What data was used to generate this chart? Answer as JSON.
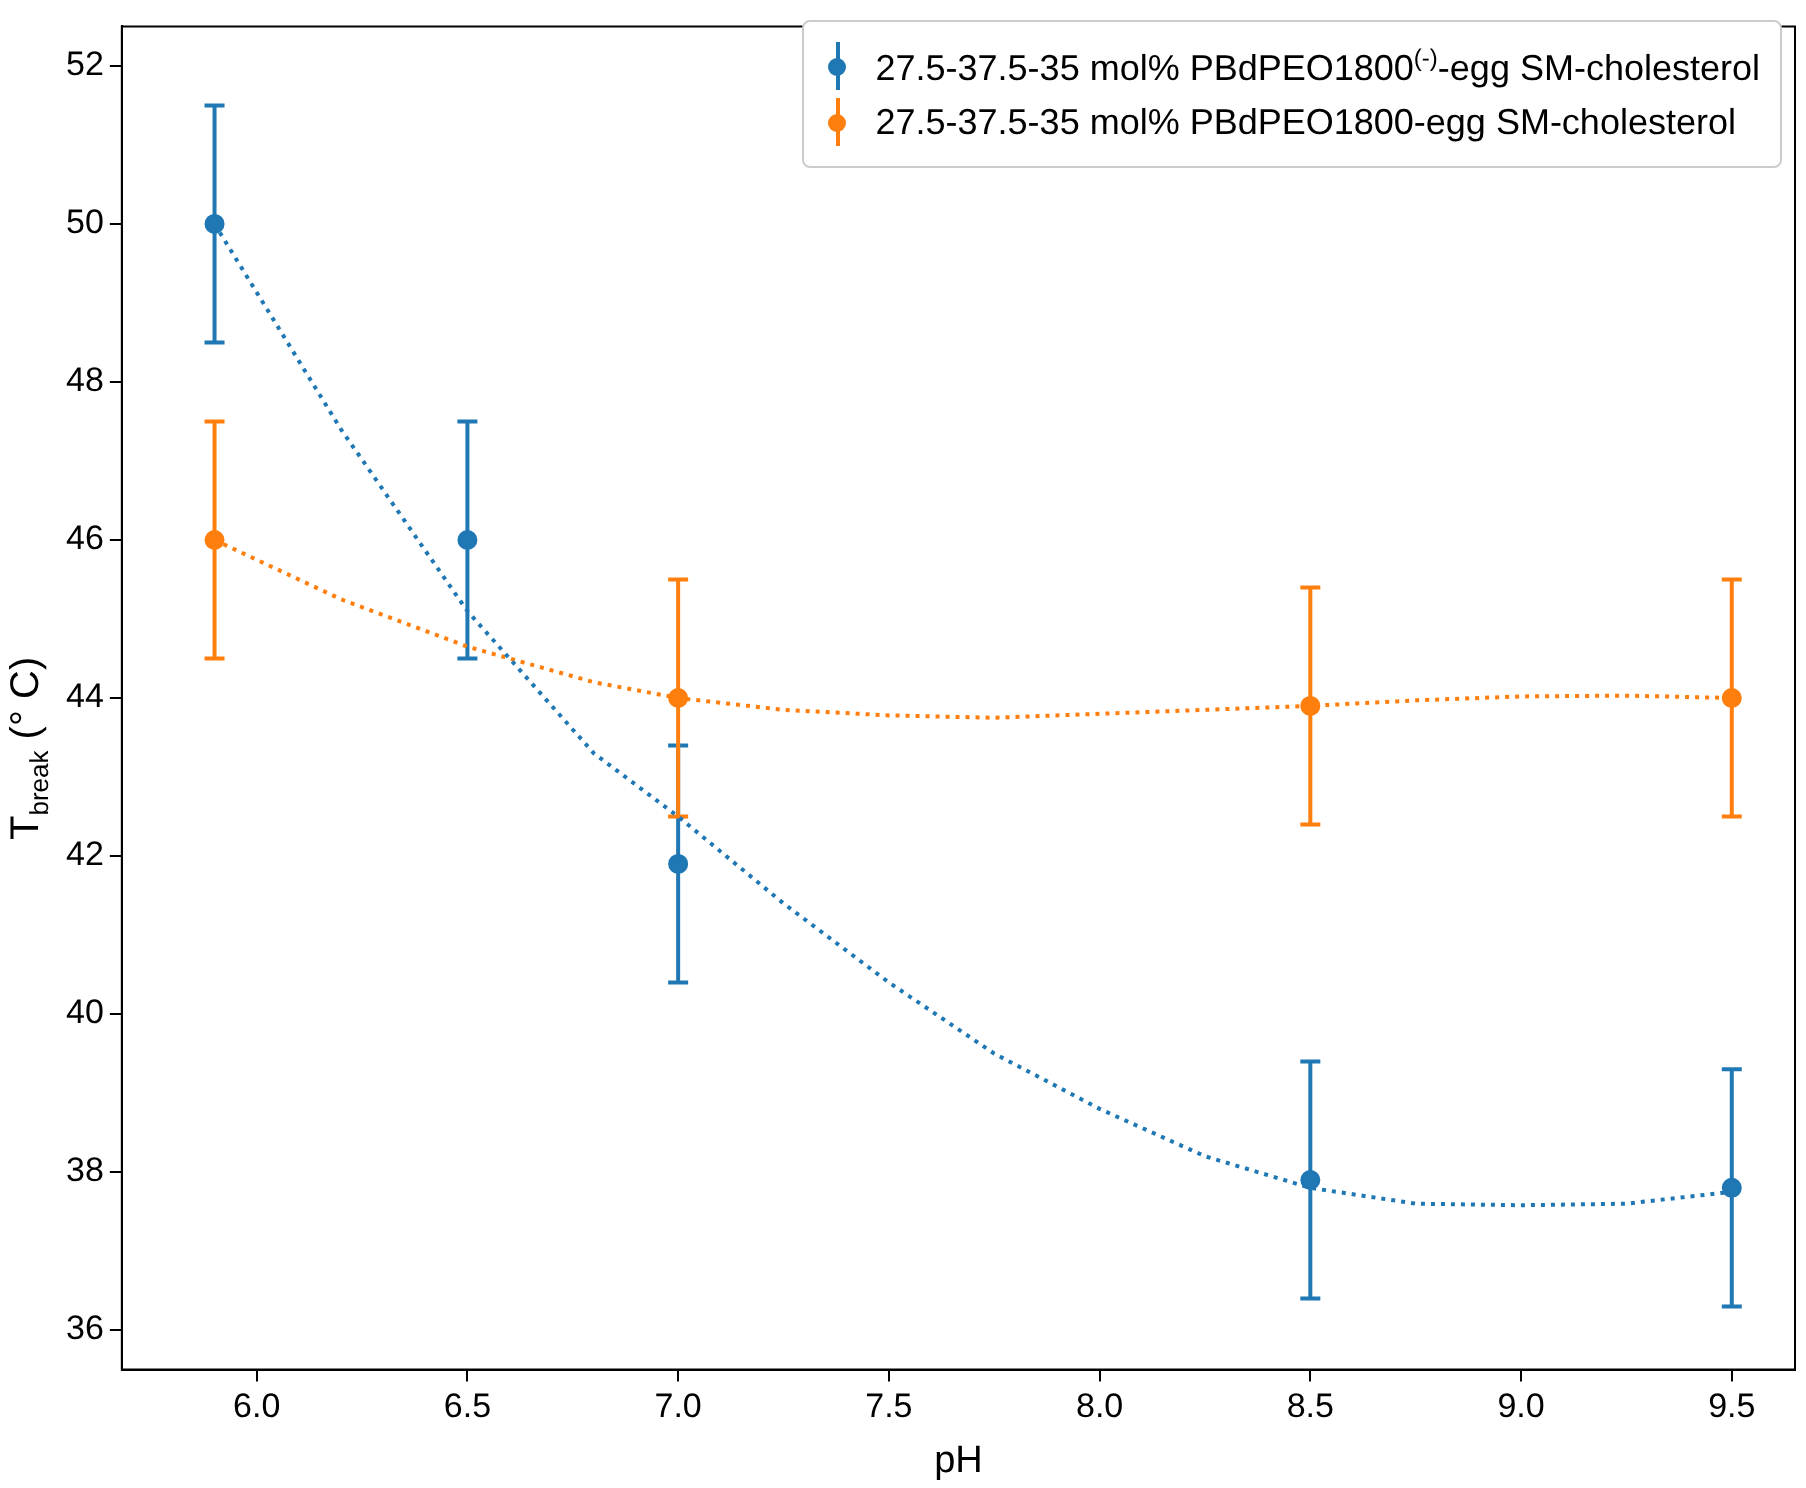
{
  "chart_data": {
    "type": "scatter",
    "xlabel": "pH",
    "ylabel": "T$_{break}$ (° C)",
    "xlim": [
      5.68,
      9.65
    ],
    "ylim": [
      35.5,
      52.5
    ],
    "xticks": [
      {
        "value": 6,
        "label": "6.0"
      },
      {
        "value": 6.5,
        "label": "6.5"
      },
      {
        "value": 7,
        "label": "7.0"
      },
      {
        "value": 7.5,
        "label": "7.5"
      },
      {
        "value": 8,
        "label": "8.0"
      },
      {
        "value": 8.5,
        "label": "8.5"
      },
      {
        "value": 9,
        "label": "9.0"
      },
      {
        "value": 9.5,
        "label": "9.5"
      }
    ],
    "yticks": [
      36,
      38,
      40,
      42,
      44,
      46,
      48,
      50,
      52
    ],
    "grid": false,
    "legend": "top right",
    "series": [
      {
        "name": "27.5-37.5-35 mol% PBdPEO1800$^{(-)}$-egg SM-cholesterol",
        "color": "#1f77b4",
        "marker": "circle",
        "x": [
          5.9,
          6.5,
          7.0,
          8.5,
          9.5
        ],
        "values": [
          50.0,
          46.0,
          41.9,
          37.9,
          37.8
        ],
        "errors": [
          1.5,
          1.5,
          1.5,
          1.5,
          1.5
        ]
      },
      {
        "name": "27.5-37.5-35 mol% PBdPEO1800-egg SM-cholesterol",
        "color": "#ff7f0e",
        "marker": "circle",
        "x": [
          5.9,
          7.0,
          8.5,
          9.5
        ],
        "values": [
          46.0,
          44.0,
          43.9,
          44.0
        ],
        "errors": [
          1.5,
          1.5,
          1.5,
          1.5
        ]
      },
      {
        "type": "line",
        "color": "#1f77b4",
        "marker": "none",
        "line_style": "dotted",
        "x": [
          5.9,
          6.2,
          6.5,
          6.8,
          7.0,
          7.25,
          7.5,
          7.75,
          8.0,
          8.25,
          8.5,
          8.75,
          9.0,
          9.25,
          9.5
        ],
        "values": [
          50.0,
          47.4,
          45.1,
          43.3,
          42.5,
          41.4,
          40.4,
          39.5,
          38.8,
          38.2,
          37.8,
          37.6,
          37.58,
          37.6,
          37.75
        ]
      },
      {
        "type": "line",
        "color": "#ff7f0e",
        "marker": "none",
        "line_style": "dotted",
        "x": [
          5.9,
          6.2,
          6.5,
          6.8,
          7.0,
          7.25,
          7.5,
          7.75,
          8.0,
          8.25,
          8.5,
          8.75,
          9.0,
          9.25,
          9.5
        ],
        "values": [
          46.0,
          45.25,
          44.65,
          44.2,
          44.0,
          43.85,
          43.78,
          43.75,
          43.8,
          43.85,
          43.9,
          43.97,
          44.02,
          44.03,
          44.0
        ]
      }
    ]
  }
}
